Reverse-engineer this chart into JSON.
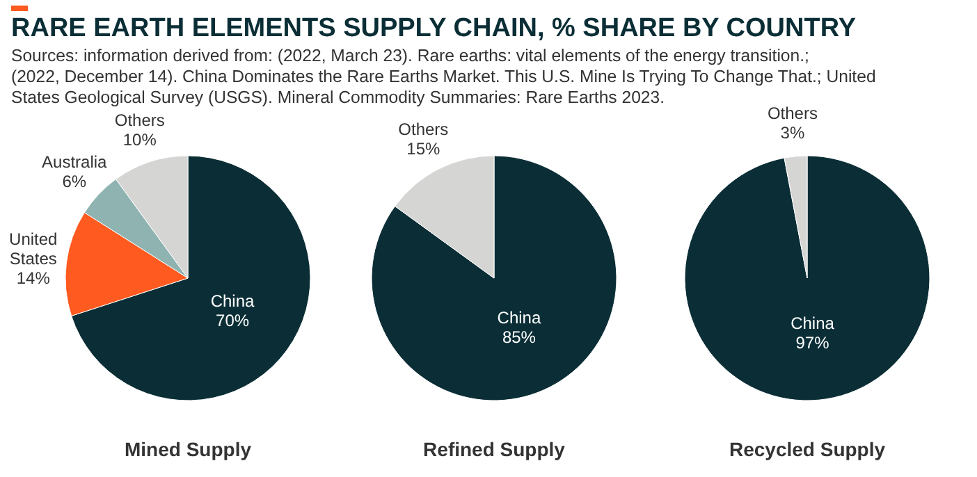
{
  "chart_data": [
    {
      "type": "other",
      "title": "RARE EARTH ELEMENTS SUPPLY CHAIN, % SHARE BY COUNTRY",
      "annotations": [
        "Sources: information derived from: (2022, March 23). Rare earths: vital elements of the energy transition.; (2022, December 14). China Dominates the Rare Earths Market. This U.S. Mine Is Trying To Change That.; United States Geological Survey (USGS). Mineral Commodity Summaries: Rare Earths 2023."
      ]
    },
    {
      "type": "pie",
      "title": "Mined Supply",
      "categories": [
        "China",
        "United States",
        "Australia",
        "Others"
      ],
      "values": [
        70,
        14,
        6,
        10
      ],
      "colors": [
        "#0b2e36",
        "#ff5a1f",
        "#8fb3b1",
        "#d5d5d3"
      ],
      "value_labels": [
        "70%",
        "14%",
        "6%",
        "10%"
      ]
    },
    {
      "type": "pie",
      "title": "Refined Supply",
      "categories": [
        "China",
        "Others"
      ],
      "values": [
        85,
        15
      ],
      "colors": [
        "#0b2e36",
        "#d5d5d3"
      ],
      "value_labels": [
        "85%",
        "15%"
      ]
    },
    {
      "type": "pie",
      "title": "Recycled Supply",
      "categories": [
        "China",
        "Others"
      ],
      "values": [
        97,
        3
      ],
      "colors": [
        "#0b2e36",
        "#d5d5d3"
      ],
      "value_labels": [
        "97%",
        "3%"
      ]
    }
  ]
}
